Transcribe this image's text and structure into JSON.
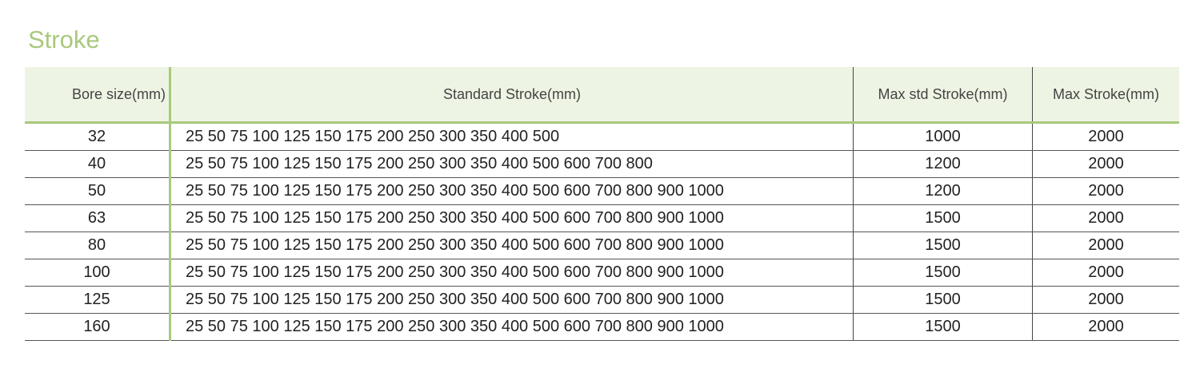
{
  "title": "Stroke",
  "colors": {
    "accent": "#a9c97c",
    "header_bg": "#eef4e3"
  },
  "table": {
    "headers": [
      "Bore size(mm)",
      "Standard Stroke(mm)",
      "Max std Stroke(mm)",
      "Max Stroke(mm)"
    ],
    "rows": [
      [
        "32",
        "25 50 75 100 125 150 175 200 250 300 350 400 500",
        "1000",
        "2000"
      ],
      [
        "40",
        "25 50 75 100 125 150 175 200 250 300 350 400 500 600 700 800",
        "1200",
        "2000"
      ],
      [
        "50",
        "25 50 75 100 125 150 175 200 250 300 350 400 500 600 700 800 900 1000",
        "1200",
        "2000"
      ],
      [
        "63",
        "25 50 75 100 125 150 175 200 250 300 350 400 500 600 700 800 900 1000",
        "1500",
        "2000"
      ],
      [
        "80",
        "25 50 75 100 125 150 175 200 250 300 350 400 500 600 700 800 900 1000",
        "1500",
        "2000"
      ],
      [
        "100",
        "25 50 75 100 125 150 175 200 250 300 350 400 500 600 700 800 900 1000",
        "1500",
        "2000"
      ],
      [
        "125",
        "25 50 75 100 125 150 175 200 250 300 350 400 500 600 700 800 900 1000",
        "1500",
        "2000"
      ],
      [
        "160",
        "25 50 75 100 125 150 175 200 250 300 350 400 500 600 700 800 900 1000",
        "1500",
        "2000"
      ]
    ]
  }
}
